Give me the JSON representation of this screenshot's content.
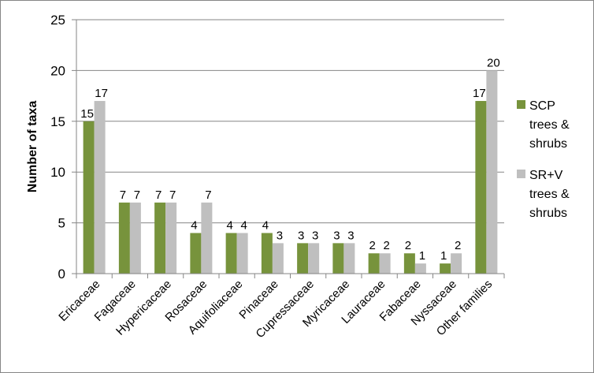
{
  "chart_data": {
    "type": "bar",
    "title": "",
    "xlabel": "",
    "ylabel": "Number of taxa",
    "ylim": [
      0,
      25
    ],
    "yticks": [
      0,
      5,
      10,
      15,
      20,
      25
    ],
    "grid": true,
    "legend_position": "right",
    "categories": [
      "Ericaceae",
      "Fagaceae",
      "Hypericaceae",
      "Rosaceae",
      "Aquifoliaceae",
      "Pinaceae",
      "Cupressaceae",
      "Myricaceae",
      "Lauraceae",
      "Fabaceae",
      "Nyssaceae",
      "Other families"
    ],
    "series": [
      {
        "name": "SCP trees & shrubs",
        "legend_lines": [
          "SCP",
          "trees &",
          "shrubs"
        ],
        "color": "#77933C",
        "values": [
          15,
          7,
          7,
          4,
          4,
          4,
          3,
          3,
          2,
          2,
          1,
          17
        ]
      },
      {
        "name": "SR+V trees & shrubs",
        "legend_lines": [
          "SR+V",
          "trees &",
          "shrubs"
        ],
        "color": "#BFBFBF",
        "values": [
          17,
          7,
          7,
          7,
          4,
          3,
          3,
          3,
          2,
          1,
          2,
          20
        ]
      }
    ]
  }
}
